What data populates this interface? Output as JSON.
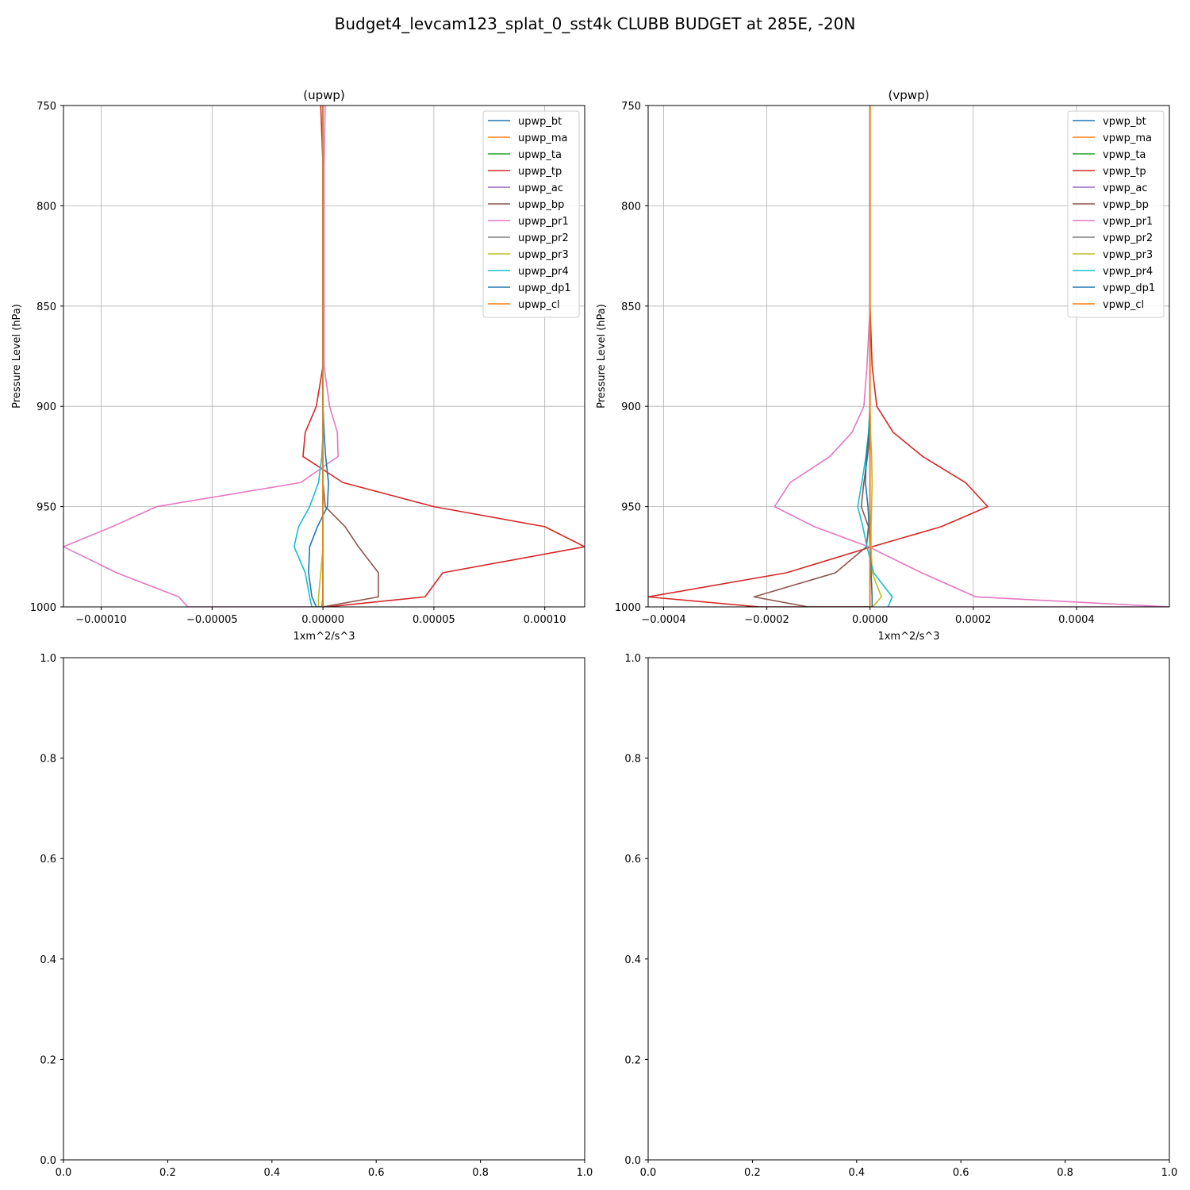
{
  "figure_title": "Budget4_levcam123_splat_0_sst4k CLUBB BUDGET at 285E, -20N",
  "colors": [
    "#1f77b4",
    "#ff7f0e",
    "#2ca02c",
    "#d62728",
    "#9467bd",
    "#8c564b",
    "#e377c2",
    "#7f7f7f",
    "#bcbd22",
    "#17becf",
    "#1f77b4",
    "#ff7f0e"
  ],
  "chart_data": [
    {
      "type": "line",
      "title": "(upwp)",
      "xlabel": "1xm^2/s^3",
      "ylabel": "Pressure Level (hPa)",
      "xlim": [
        -0.000117,
        0.000118
      ],
      "ylim": [
        1000,
        750
      ],
      "grid": true,
      "legend": "top-right",
      "xticks": [
        -0.0001,
        -5e-05,
        0,
        5e-05,
        0.0001
      ],
      "xtick_labels": [
        "−0.00010",
        "−0.00005",
        "0.00000",
        "0.00005",
        "0.00010"
      ],
      "yticks": [
        750,
        800,
        850,
        900,
        950,
        1000
      ],
      "ytick_labels": [
        "750",
        "800",
        "850",
        "900",
        "950",
        "1000"
      ],
      "series": [
        {
          "name": "upwp_bt",
          "x": [
            0,
            0,
            0,
            0,
            0,
            0,
            0,
            0,
            0,
            0,
            0,
            0,
            0,
            0,
            0,
            0
          ],
          "y": [
            750,
            780,
            800,
            850,
            880,
            900,
            913,
            925,
            938,
            950,
            960,
            970,
            983,
            995,
            1000,
            1000
          ]
        },
        {
          "name": "upwp_ma",
          "x": [
            0,
            0,
            0,
            0,
            0,
            0,
            0,
            0,
            0,
            0,
            0,
            0,
            0,
            0,
            0,
            0
          ],
          "y": [
            750,
            780,
            800,
            850,
            880,
            900,
            913,
            925,
            938,
            950,
            960,
            970,
            983,
            995,
            1000,
            1000
          ]
        },
        {
          "name": "upwp_ta",
          "x": [
            0,
            0,
            0,
            0,
            0,
            0,
            0,
            0,
            0,
            0,
            0,
            0,
            0,
            0,
            -5e-07,
            0
          ],
          "y": [
            750,
            780,
            800,
            850,
            880,
            900,
            913,
            925,
            938,
            950,
            960,
            970,
            983,
            995,
            1000,
            1000
          ]
        },
        {
          "name": "upwp_tp",
          "x": [
            -1e-06,
            0,
            0,
            0,
            0,
            -3e-06,
            -8e-06,
            -9e-06,
            9e-06,
            5e-05,
            0.0001,
            0.000118,
            5.4e-05,
            4.6e-05,
            2e-06,
            0
          ],
          "y": [
            750,
            780,
            800,
            850,
            880,
            900,
            913,
            925,
            938,
            950,
            960,
            970,
            983,
            995,
            1000,
            1000
          ]
        },
        {
          "name": "upwp_ac",
          "x": [
            0,
            0,
            0,
            0,
            0,
            0,
            0,
            0,
            0,
            0,
            0,
            0,
            0,
            0,
            0,
            0
          ],
          "y": [
            750,
            780,
            800,
            850,
            880,
            900,
            913,
            925,
            938,
            950,
            960,
            970,
            983,
            995,
            1000,
            1000
          ]
        },
        {
          "name": "upwp_bp",
          "x": [
            0,
            0,
            0,
            0,
            0,
            0,
            0,
            0,
            0,
            1e-06,
            1e-05,
            1.6e-05,
            2.5e-05,
            2.5e-05,
            0,
            0
          ],
          "y": [
            750,
            780,
            800,
            850,
            880,
            900,
            913,
            925,
            938,
            950,
            960,
            970,
            983,
            995,
            1000,
            1000
          ]
        },
        {
          "name": "upwp_pr1",
          "x": [
            1e-06,
            5e-07,
            5e-07,
            5e-07,
            5e-07,
            3e-06,
            6.5e-06,
            6.8e-06,
            -1e-05,
            -7.5e-05,
            -9.5e-05,
            -0.000117,
            -9.3e-05,
            -6.5e-05,
            -6.1e-05,
            -3.5e-06
          ],
          "y": [
            750,
            780,
            800,
            850,
            880,
            900,
            913,
            925,
            938,
            950,
            960,
            970,
            983,
            995,
            1000,
            1000
          ]
        },
        {
          "name": "upwp_pr2",
          "x": [
            0,
            0,
            0,
            0,
            0,
            0,
            0,
            0,
            0,
            0,
            0,
            0,
            0,
            0,
            0,
            0
          ],
          "y": [
            750,
            780,
            800,
            850,
            880,
            900,
            913,
            925,
            938,
            950,
            960,
            970,
            983,
            995,
            1000,
            1000
          ]
        },
        {
          "name": "upwp_pr3",
          "x": [
            0,
            0,
            0,
            0,
            0,
            0,
            0,
            0,
            0,
            0,
            0,
            0,
            -1e-06,
            -2e-06,
            -2e-06,
            0
          ],
          "y": [
            750,
            780,
            800,
            850,
            880,
            900,
            913,
            925,
            938,
            950,
            960,
            970,
            983,
            995,
            1000,
            1000
          ]
        },
        {
          "name": "upwp_pr4",
          "x": [
            0,
            0,
            0,
            0,
            0,
            0,
            0,
            -5e-07,
            -2e-06,
            -6e-06,
            -1.1e-05,
            -1.3e-05,
            -8e-06,
            -6e-06,
            -5e-06,
            -4e-06
          ],
          "y": [
            750,
            780,
            800,
            850,
            880,
            900,
            913,
            925,
            938,
            950,
            960,
            970,
            983,
            995,
            1000,
            1000
          ]
        },
        {
          "name": "upwp_dp1",
          "x": [
            0,
            0,
            0,
            0,
            0,
            0,
            5e-07,
            1.2e-06,
            2.5e-06,
            2e-06,
            -2.5e-06,
            -6e-06,
            -6.5e-06,
            -5e-06,
            -3e-06,
            0
          ],
          "y": [
            750,
            780,
            800,
            850,
            880,
            900,
            913,
            925,
            938,
            950,
            960,
            970,
            983,
            995,
            1000,
            1000
          ]
        },
        {
          "name": "upwp_cl",
          "x": [
            0,
            0,
            0,
            0,
            0,
            0,
            0,
            0,
            0,
            0,
            0,
            0,
            0,
            0,
            0,
            0
          ],
          "y": [
            750,
            780,
            800,
            850,
            880,
            900,
            913,
            925,
            938,
            950,
            960,
            970,
            983,
            995,
            1000,
            1000
          ]
        }
      ]
    },
    {
      "type": "line",
      "title": "(vpwp)",
      "xlabel": "1xm^2/s^3",
      "ylabel": "Pressure Level (hPa)",
      "xlim": [
        -0.00043,
        0.00058
      ],
      "ylim": [
        1000,
        750
      ],
      "grid": true,
      "legend": "top-right",
      "xticks": [
        -0.0004,
        -0.0002,
        0,
        0.0002,
        0.0004
      ],
      "xtick_labels": [
        "−0.0004",
        "−0.0002",
        "0.0000",
        "0.0002",
        "0.0004"
      ],
      "yticks": [
        750,
        800,
        850,
        900,
        950,
        1000
      ],
      "ytick_labels": [
        "750",
        "800",
        "850",
        "900",
        "950",
        "1000"
      ],
      "series": [
        {
          "name": "vpwp_bt",
          "x": [
            0,
            0,
            0,
            0,
            0,
            0,
            0,
            0,
            0,
            0,
            0,
            0,
            0,
            0,
            0,
            0
          ],
          "y": [
            750,
            780,
            800,
            850,
            880,
            900,
            913,
            925,
            938,
            950,
            960,
            970,
            983,
            995,
            1000,
            1000
          ]
        },
        {
          "name": "vpwp_ma",
          "x": [
            0,
            0,
            0,
            0,
            0,
            0,
            0,
            0,
            0,
            0,
            0,
            0,
            0,
            0,
            0,
            0
          ],
          "y": [
            750,
            780,
            800,
            850,
            880,
            900,
            913,
            925,
            938,
            950,
            960,
            970,
            983,
            995,
            1000,
            1000
          ]
        },
        {
          "name": "vpwp_ta",
          "x": [
            0,
            0,
            0,
            0,
            0,
            0,
            0,
            0,
            0,
            0,
            0,
            0,
            0,
            0,
            0,
            0
          ],
          "y": [
            750,
            780,
            800,
            850,
            880,
            900,
            913,
            925,
            938,
            950,
            960,
            970,
            983,
            995,
            1000,
            1000
          ]
        },
        {
          "name": "vpwp_tp",
          "x": [
            0,
            0,
            0,
            0,
            4e-06,
            1.3e-05,
            4.5e-05,
            0.000102,
            0.000185,
            0.000228,
            0.000138,
            4e-06,
            -0.000162,
            -0.00043,
            -0.000215,
            0
          ],
          "y": [
            750,
            780,
            800,
            850,
            880,
            900,
            913,
            925,
            938,
            950,
            960,
            970,
            983,
            995,
            1000,
            1000
          ]
        },
        {
          "name": "vpwp_ac",
          "x": [
            0,
            0,
            0,
            0,
            0,
            0,
            0,
            0,
            0,
            0,
            0,
            0,
            0,
            0,
            0,
            0
          ],
          "y": [
            750,
            780,
            800,
            850,
            880,
            900,
            913,
            925,
            938,
            950,
            960,
            970,
            983,
            995,
            1000,
            1000
          ]
        },
        {
          "name": "vpwp_bp",
          "x": [
            0,
            0,
            0,
            0,
            0,
            0,
            0,
            -5e-06,
            -1.2e-05,
            -1.7e-05,
            -3e-06,
            -7e-06,
            -6.7e-05,
            -0.000225,
            -0.00012,
            0
          ],
          "y": [
            750,
            780,
            800,
            850,
            880,
            900,
            913,
            925,
            938,
            950,
            960,
            970,
            983,
            995,
            1000,
            1000
          ]
        },
        {
          "name": "vpwp_pr1",
          "x": [
            0,
            0,
            0,
            0,
            -6e-06,
            -1.2e-05,
            -3.5e-05,
            -7.8e-05,
            -0.000155,
            -0.000185,
            -0.000108,
            -3e-06,
            0.0001,
            0.000205,
            0.00058,
            3.2e-05
          ],
          "y": [
            750,
            780,
            800,
            850,
            880,
            900,
            913,
            925,
            938,
            950,
            960,
            970,
            983,
            995,
            1000,
            1000
          ]
        },
        {
          "name": "vpwp_pr2",
          "x": [
            0,
            0,
            0,
            0,
            0,
            0,
            0,
            0,
            0,
            0,
            0,
            0,
            0,
            0,
            0,
            0
          ],
          "y": [
            750,
            780,
            800,
            850,
            880,
            900,
            913,
            925,
            938,
            950,
            960,
            970,
            983,
            995,
            1000,
            1000
          ]
        },
        {
          "name": "vpwp_pr3",
          "x": [
            0,
            0,
            0,
            0,
            0,
            0,
            1e-06,
            3e-06,
            4e-06,
            3e-06,
            2e-06,
            2e-06,
            4e-06,
            2.2e-05,
            5e-06,
            0
          ],
          "y": [
            750,
            780,
            800,
            850,
            880,
            900,
            913,
            925,
            938,
            950,
            960,
            970,
            983,
            995,
            1000,
            1000
          ]
        },
        {
          "name": "vpwp_pr4",
          "x": [
            0,
            0,
            0,
            0,
            0,
            0,
            -3e-06,
            -8e-06,
            -1.6e-05,
            -2.4e-05,
            -1.4e-05,
            -6e-06,
            7e-06,
            4.3e-05,
            3.5e-05,
            3.5e-05
          ],
          "y": [
            750,
            780,
            800,
            850,
            880,
            900,
            913,
            925,
            938,
            950,
            960,
            970,
            983,
            995,
            1000,
            1000
          ]
        },
        {
          "name": "vpwp_dp1",
          "x": [
            0,
            0,
            0,
            0,
            0,
            0,
            -2e-06,
            -7e-06,
            -9e-06,
            -4e-06,
            -2e-06,
            0,
            2e-06,
            4e-06,
            4e-06,
            0
          ],
          "y": [
            750,
            780,
            800,
            850,
            880,
            900,
            913,
            925,
            938,
            950,
            960,
            970,
            983,
            995,
            1000,
            1000
          ]
        },
        {
          "name": "vpwp_cl",
          "x": [
            0,
            0,
            0,
            0,
            0,
            0,
            0,
            0,
            0,
            0,
            0,
            0,
            0,
            0,
            0,
            0
          ],
          "y": [
            750,
            780,
            800,
            850,
            880,
            900,
            913,
            925,
            938,
            950,
            960,
            970,
            983,
            995,
            1000,
            1000
          ]
        }
      ]
    },
    {
      "type": "line",
      "title": "",
      "xlim": [
        0,
        1
      ],
      "ylim": [
        0,
        1
      ],
      "grid": false,
      "xticks": [
        0,
        0.2,
        0.4,
        0.6,
        0.8,
        1
      ],
      "xtick_labels": [
        "0.0",
        "0.2",
        "0.4",
        "0.6",
        "0.8",
        "1.0"
      ],
      "yticks": [
        0,
        0.2,
        0.4,
        0.6,
        0.8,
        1
      ],
      "ytick_labels": [
        "0.0",
        "0.2",
        "0.4",
        "0.6",
        "0.8",
        "1.0"
      ],
      "series": []
    },
    {
      "type": "line",
      "title": "",
      "xlim": [
        0,
        1
      ],
      "ylim": [
        0,
        1
      ],
      "grid": false,
      "xticks": [
        0,
        0.2,
        0.4,
        0.6,
        0.8,
        1
      ],
      "xtick_labels": [
        "0.0",
        "0.2",
        "0.4",
        "0.6",
        "0.8",
        "1.0"
      ],
      "yticks": [
        0,
        0.2,
        0.4,
        0.6,
        0.8,
        1
      ],
      "ytick_labels": [
        "0.0",
        "0.2",
        "0.4",
        "0.6",
        "0.8",
        "1.0"
      ],
      "series": []
    }
  ]
}
